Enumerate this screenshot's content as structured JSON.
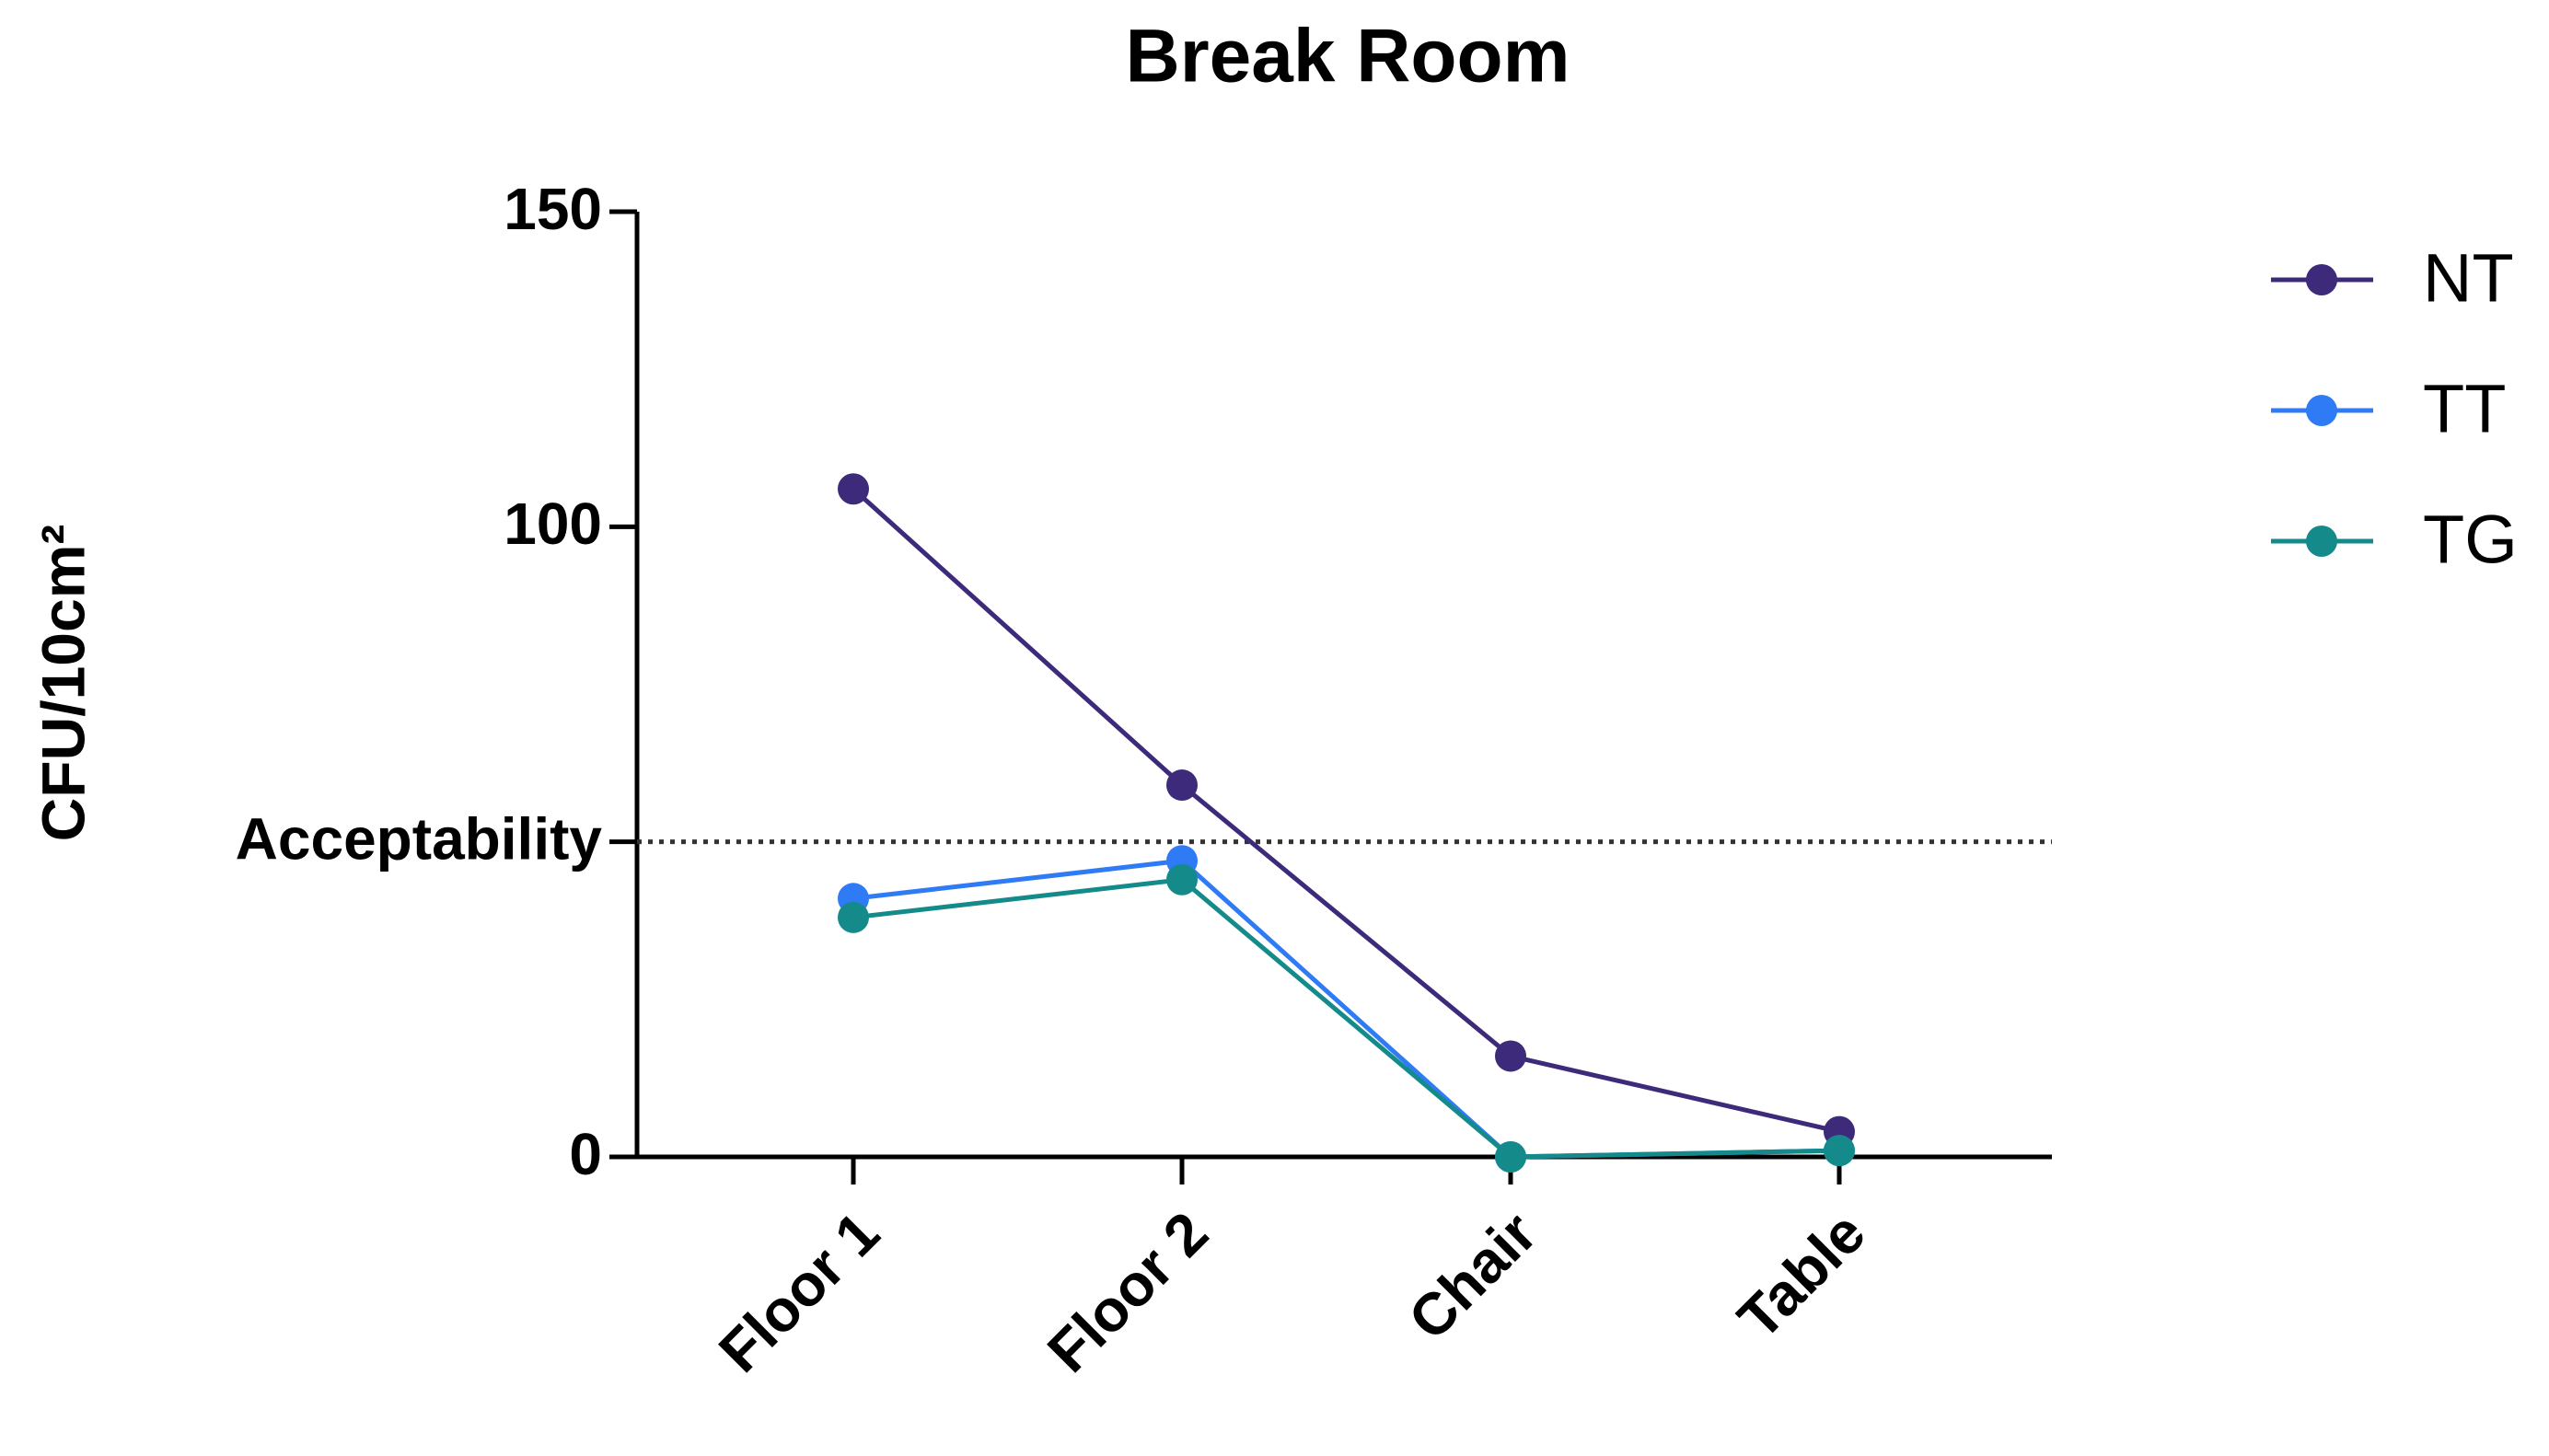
{
  "chart_data": {
    "type": "line",
    "title": "Break Room",
    "y_label": "CFU/10cm²",
    "categories": [
      "Floor 1",
      "Floor 2",
      "Chair",
      "Table"
    ],
    "series": [
      {
        "name": "NT",
        "color": "#3d2a7a",
        "values": [
          106,
          59,
          16,
          4
        ]
      },
      {
        "name": "TT",
        "color": "#2f7bf5",
        "values": [
          41,
          47,
          0,
          1
        ]
      },
      {
        "name": "TG",
        "color": "#148a8a",
        "values": [
          38,
          44,
          0,
          1
        ]
      }
    ],
    "ylim": [
      0,
      150
    ],
    "yticks": [
      0,
      100,
      150,
      {
        "value": 50,
        "label": "Acceptability"
      }
    ],
    "reference_line": 50,
    "legend": "right"
  }
}
